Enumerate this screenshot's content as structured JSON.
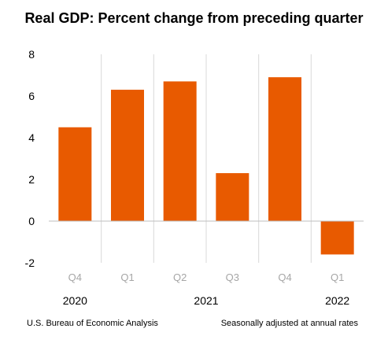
{
  "header": {
    "title": "Real GDP:  Percent change from preceding quarter"
  },
  "footer": {
    "source": "U.S. Bureau of Economic Analysis",
    "note": "Seasonally adjusted at annual rates"
  },
  "colors": {
    "bar": "#e85a00",
    "gridline": "#d9d9d9",
    "zero_line": "#bfbfbf",
    "category_text": "#a6a6a6"
  },
  "chart_data": {
    "type": "bar",
    "title": "Real GDP:  Percent change from preceding quarter",
    "xlabel": "",
    "ylabel": "",
    "categories": [
      "Q4",
      "Q1",
      "Q2",
      "Q3",
      "Q4",
      "Q1"
    ],
    "years": [
      {
        "label": "2020",
        "start": 0,
        "end": 0
      },
      {
        "label": "2021",
        "start": 1,
        "end": 4
      },
      {
        "label": "2022",
        "start": 5,
        "end": 5
      }
    ],
    "values": [
      4.5,
      6.3,
      6.7,
      2.3,
      6.9,
      -1.6
    ],
    "ylim": [
      -2,
      8
    ],
    "yticks": [
      -2,
      0,
      2,
      4,
      6,
      8
    ],
    "ytick_labels": [
      "-2",
      "0",
      "2",
      "4",
      "6",
      "8"
    ],
    "grid": "vertical separators",
    "legend": "none"
  }
}
